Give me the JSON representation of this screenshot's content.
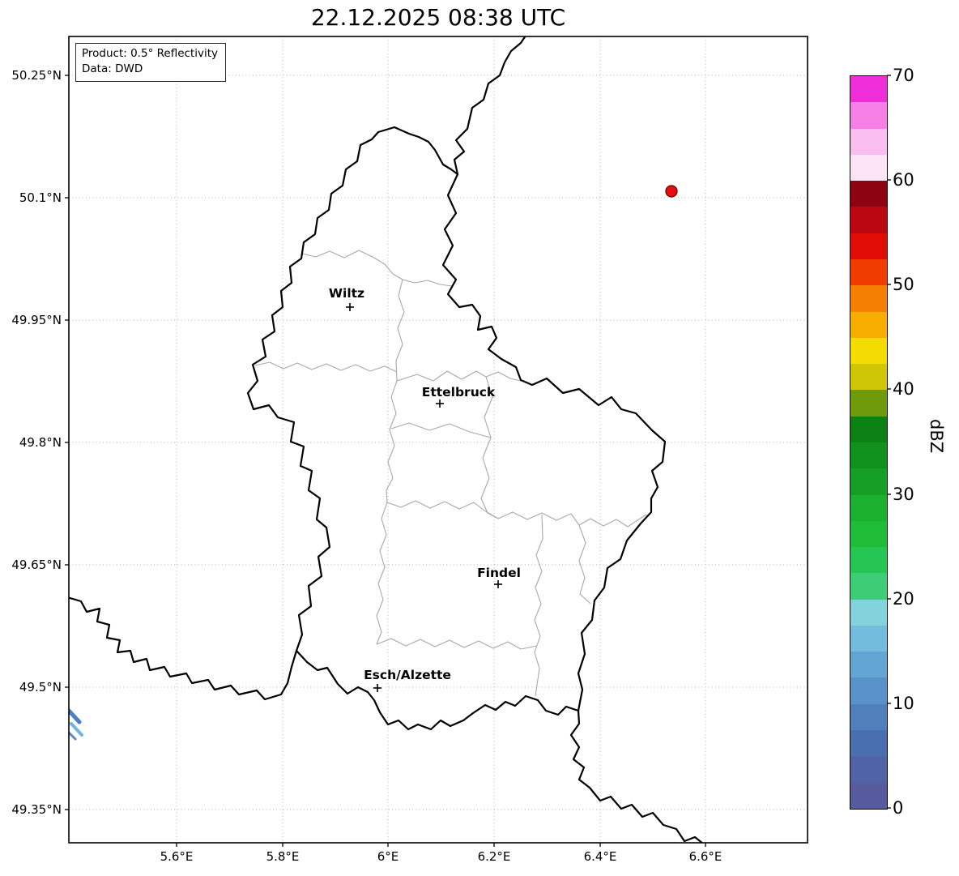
{
  "title": "22.12.2025 08:38 UTC",
  "info_box": {
    "line1": "Product: 0.5° Reflectivity",
    "line2": "Data: DWD"
  },
  "axes": {
    "lat_ticks": [
      "50.25°N",
      "50.1°N",
      "49.95°N",
      "49.8°N",
      "49.65°N",
      "49.5°N",
      "49.35°N"
    ],
    "lon_ticks": [
      "5.6°E",
      "5.8°E",
      "6°E",
      "6.2°E",
      "6.4°E",
      "6.6°E"
    ]
  },
  "cities": [
    {
      "name": "Wiltz"
    },
    {
      "name": "Ettelbruck"
    },
    {
      "name": "Findel"
    },
    {
      "name": "Esch/Alzette"
    }
  ],
  "colorbar": {
    "label": "dBZ",
    "ticks": [
      "70",
      "60",
      "50",
      "40",
      "30",
      "20",
      "10",
      "0"
    ],
    "min": 0,
    "max": 70,
    "colors_bottom_to_top": [
      "#575b9d",
      "#5063a7",
      "#4a6fb0",
      "#5080bc",
      "#5992c8",
      "#64a6d3",
      "#73bcdd",
      "#83d3dc",
      "#3ecc77",
      "#26c654",
      "#1fbc38",
      "#1bb02d",
      "#15a025",
      "#10901c",
      "#0b8013",
      "#6f9a0a",
      "#cfc705",
      "#f4dc02",
      "#f7ae00",
      "#f57f00",
      "#ef3c00",
      "#e00d06",
      "#bb0810",
      "#8c0410",
      "#fce4f7",
      "#fabdef",
      "#f57fe4",
      "#ee2ed9"
    ]
  },
  "echoes": {
    "red_dot_color": "#e31010",
    "blue_streak_colors": [
      "#4a7fc1",
      "#74b4dc",
      "#568cc3"
    ]
  }
}
